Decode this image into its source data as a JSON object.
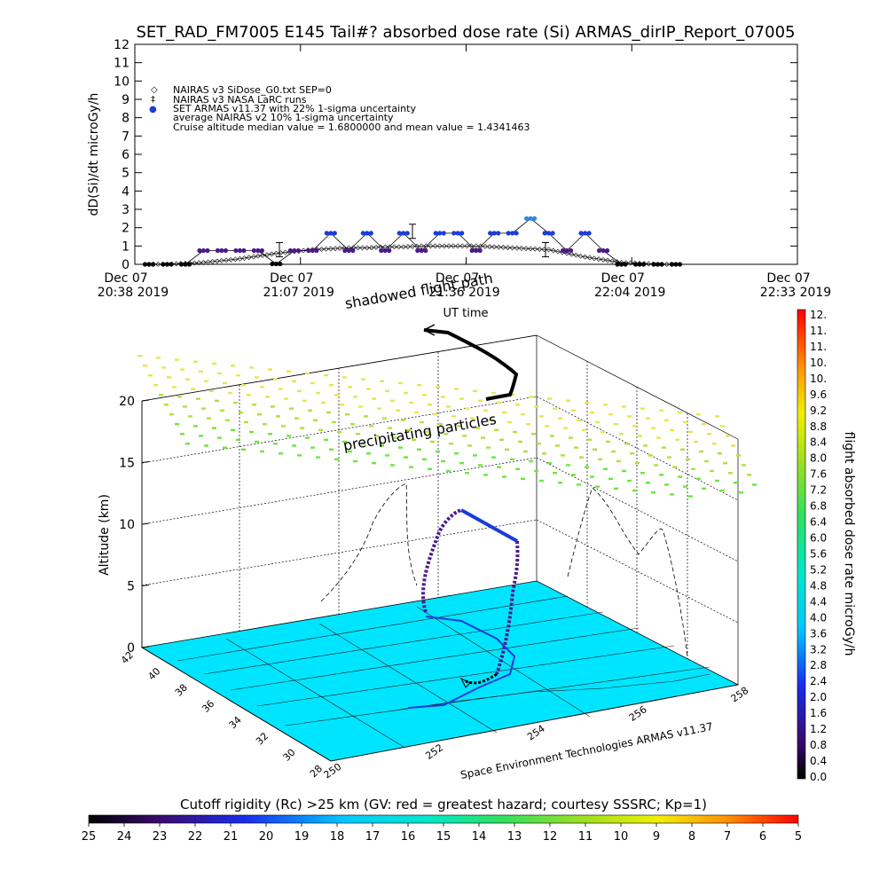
{
  "title": "SET_RAD_FM7005   E145 Tail#? absorbed dose rate (Si) ARMAS_dirIP_Report_07005",
  "top_chart": {
    "ylabel": "dD(Si)/dt microGy/h",
    "xlabel": "UT time",
    "yticks": [
      "0",
      "1",
      "2",
      "3",
      "4",
      "5",
      "6",
      "7",
      "8",
      "9",
      "10",
      "11",
      "12"
    ],
    "xticks": [
      {
        "date": "Dec 07",
        "time": "20:38 2019"
      },
      {
        "date": "Dec 07",
        "time": "21:07 2019"
      },
      {
        "date": "Dec 07",
        "time": "21:36 2019"
      },
      {
        "date": "Dec 07",
        "time": "22:04 2019"
      },
      {
        "date": "Dec 07",
        "time": "22:33 2019"
      }
    ],
    "legend": [
      {
        "symbol": "◇",
        "text": "NAIRAS v3 SiDose_G0.txt SEP=0"
      },
      {
        "symbol": "‡",
        "text": "NAIRAS v3 NASA LaRC runs"
      },
      {
        "symbol": "●",
        "text": "SET ARMAS v11.37 with 22% 1-sigma uncertainty"
      },
      {
        "symbol": "",
        "text": "average NAIRAS v2 10% 1-sigma uncertainty"
      },
      {
        "symbol": "",
        "text": "Cruise altitude median value = 1.6800000 and mean value = 1.4341463"
      }
    ]
  },
  "three_d": {
    "zlabel": "Altitude (km)",
    "zticks": [
      "0",
      "5",
      "10",
      "15",
      "20"
    ],
    "lat_ticks": [
      "42",
      "40",
      "38",
      "36",
      "34",
      "32",
      "30",
      "28"
    ],
    "lon_ticks": [
      "250",
      "252",
      "254",
      "256",
      "258"
    ],
    "annotation_shadowed": "shadowed flight path",
    "annotation_precip": "precipitating particles",
    "credit": "Space Environment Technologies ARMAS v11.37"
  },
  "right_colorbar": {
    "label": "flight absorbed dose rate microGy/h",
    "ticks": [
      "12.",
      "11.",
      "11.",
      "10.",
      "10.",
      "9.6",
      "9.2",
      "8.8",
      "8.4",
      "8.0",
      "7.6",
      "7.2",
      "6.8",
      "6.4",
      "6.0",
      "5.6",
      "5.2",
      "4.8",
      "4.4",
      "4.0",
      "3.6",
      "3.2",
      "2.8",
      "2.4",
      "2.0",
      "1.6",
      "1.2",
      "0.8",
      "0.4",
      "0.0"
    ]
  },
  "bottom_colorbar": {
    "label": "Cutoff rigidity (Rc) >25 km (GV: red = greatest hazard; courtesy SSSRC; Kp=1)",
    "ticks": [
      "25",
      "24",
      "23",
      "22",
      "21",
      "20",
      "19",
      "18",
      "17",
      "16",
      "15",
      "14",
      "13",
      "12",
      "11",
      "10",
      "9",
      "8",
      "7",
      "6",
      "5"
    ]
  },
  "colors": {
    "ocean_cyan": "#00e5ff",
    "armas_blue": "#1a3cdc",
    "armas_purple": "#4b1a8a",
    "precip_yellow": "#e6e650",
    "precip_green": "#6ee63c"
  },
  "chart_data": {
    "type": "line",
    "x": [
      "20:38",
      "20:42",
      "20:46",
      "20:50",
      "20:53",
      "20:57",
      "21:01",
      "21:04",
      "21:07",
      "21:10",
      "21:14",
      "21:17",
      "21:20",
      "21:24",
      "21:27",
      "21:30",
      "21:33",
      "21:36",
      "21:39",
      "21:43",
      "21:46",
      "21:49",
      "21:52",
      "21:56",
      "21:59",
      "22:02",
      "22:05",
      "22:09",
      "22:12",
      "22:16"
    ],
    "series": [
      {
        "name": "SET ARMAS v11.37 with 22% 1-sigma uncertainty",
        "values": [
          0.0,
          0.0,
          0.0,
          0.75,
          0.75,
          0.75,
          0.75,
          0.02,
          0.75,
          0.75,
          1.7,
          0.75,
          1.7,
          0.75,
          1.7,
          0.75,
          1.7,
          1.7,
          0.75,
          1.7,
          1.7,
          2.5,
          1.7,
          0.75,
          1.7,
          0.75,
          0.0,
          0.0,
          0.0,
          0.0
        ]
      },
      {
        "name": "NAIRAS v3 SiDose_G0.txt SEP=0",
        "values": [
          0.0,
          0.0,
          0.05,
          0.1,
          0.2,
          0.3,
          0.45,
          0.6,
          0.7,
          0.8,
          0.85,
          0.9,
          0.9,
          0.95,
          0.95,
          1.0,
          1.0,
          1.0,
          1.0,
          0.95,
          0.9,
          0.85,
          0.8,
          0.6,
          0.4,
          0.25,
          0.1,
          0.05,
          0.0,
          0.0
        ]
      }
    ],
    "ylim": [
      0,
      12
    ]
  }
}
